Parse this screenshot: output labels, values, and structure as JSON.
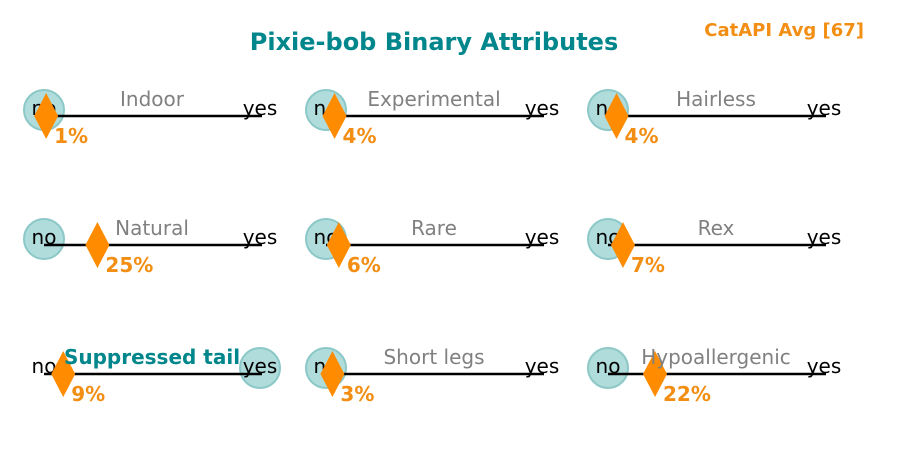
{
  "chart_data": {
    "type": "binary-slider-grid",
    "title": "Pixie-bob Binary Attributes",
    "average_label": "CatAPI Avg [67]",
    "left_label": "no",
    "right_label": "yes",
    "value_range": [
      0,
      1
    ],
    "attributes": [
      {
        "name": "Indoor",
        "value": 0,
        "percent_label": "1%",
        "percent": 1,
        "highlighted": false
      },
      {
        "name": "Experimental",
        "value": 0,
        "percent_label": "4%",
        "percent": 4,
        "highlighted": false
      },
      {
        "name": "Hairless",
        "value": 0,
        "percent_label": "4%",
        "percent": 4,
        "highlighted": false
      },
      {
        "name": "Natural",
        "value": 0,
        "percent_label": "25%",
        "percent": 25,
        "highlighted": false
      },
      {
        "name": "Rare",
        "value": 0,
        "percent_label": "6%",
        "percent": 6,
        "highlighted": false
      },
      {
        "name": "Rex",
        "value": 0,
        "percent_label": "7%",
        "percent": 7,
        "highlighted": false
      },
      {
        "name": "Suppressed tail",
        "value": 1,
        "percent_label": "9%",
        "percent": 9,
        "highlighted": true
      },
      {
        "name": "Short legs",
        "value": 0,
        "percent_label": "3%",
        "percent": 3,
        "highlighted": false
      },
      {
        "name": "Hypoallergenic",
        "value": 0,
        "percent_label": "22%",
        "percent": 22,
        "highlighted": false
      }
    ]
  },
  "colors": {
    "title": "#00868b",
    "highlight_label": "#00868b",
    "average": "#f28e13",
    "marker": "#ff8c00",
    "circle_fill": "#b0dcdc",
    "circle_stroke": "#8cc8c8",
    "muted_label": "#808080",
    "line": "#000000"
  }
}
